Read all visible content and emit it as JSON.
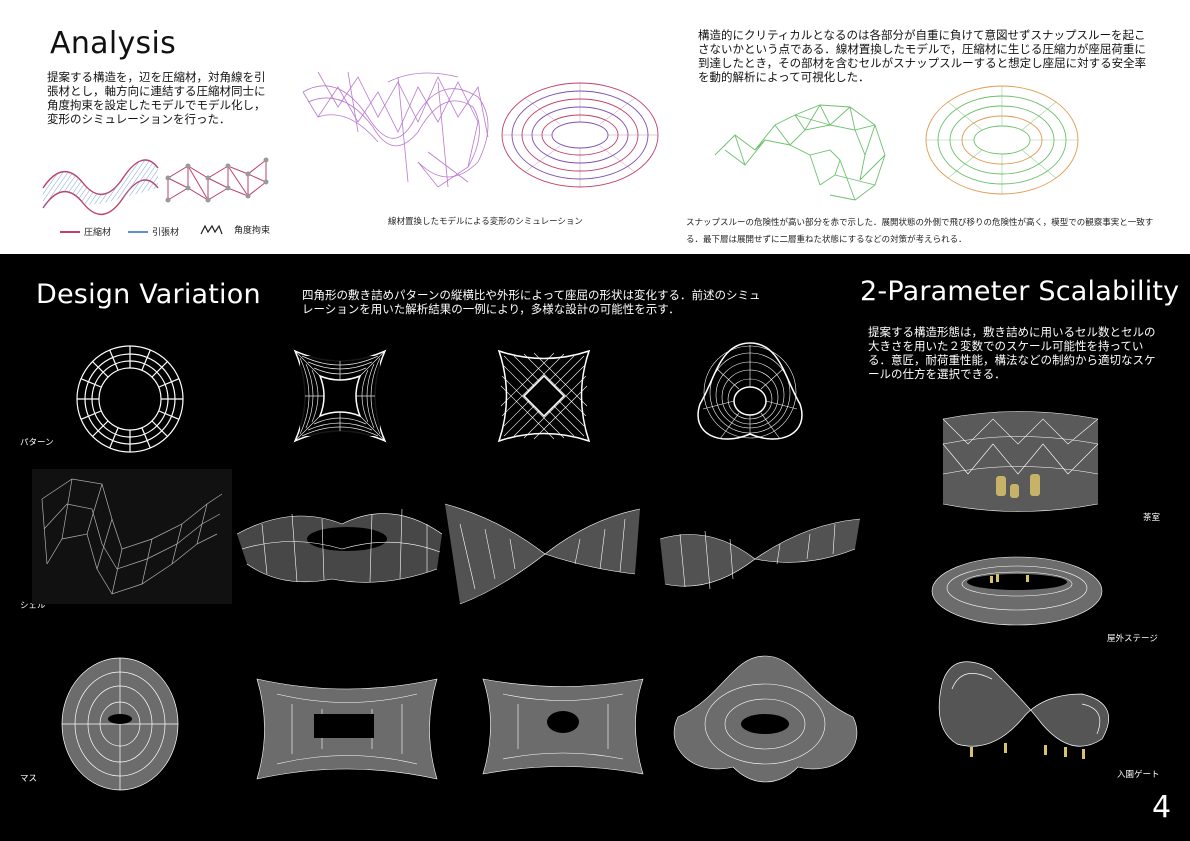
{
  "analysis": {
    "title": "Analysis",
    "description": "提案する構造を，辺を圧縮材，対角線を引張材とし，軸方向に連結する圧縮材同士に角度拘束を設定したモデルでモデル化し，変形のシミュレーションを行った．",
    "legend": {
      "compression": "圧縮材",
      "tension": "引張材",
      "angle": "角度拘束"
    },
    "sim_caption": "線材置換したモデルによる変形のシミュレーション",
    "critical_text": "構造的にクリティカルとなるのは各部分が自重に負けて意図せずスナップスルーを起こさないかという点である．線材置換したモデルで，圧縮材に生じる圧縮力が座屈荷重に到達したとき，その部材を含むセルがスナップスルーすると想定し座屈に対する安全率を動的解析によって可視化した．",
    "snap_caption": "スナップスルーの危険性が高い部分を赤で示した．展開状態の外側で飛び移りの危険性が高く，模型での観察事実と一致する．最下層は展開せずに二層重ねた状態にするなどの対策が考えられる．"
  },
  "design_variation": {
    "title": "Design Variation",
    "description": "四角形の敷き詰めパターンの縦横比や外形によって座屈の形状は変化する．前述のシミュレーションを用いた解析結果の一例により，多様な設計の可能性を示す．",
    "row_labels": [
      "パターン",
      "シェル",
      "マス"
    ]
  },
  "scalability": {
    "title": "2-Parameter Scalability",
    "description": "提案する構造形態は，敷き詰めに用いるセル数とセルの大きさを用いた２変数でのスケール可能性を持っている．意匠，耐荷重性能，構法などの制約から適切なスケールの仕方を選択できる．",
    "labels": [
      "茶室",
      "屋外ステージ",
      "入園ゲート"
    ]
  },
  "page_number": "4",
  "colors": {
    "compression": "#c0406a",
    "tension": "#5b8fd6",
    "snap_green": "#6dbf6d",
    "snap_orange": "#e09a50"
  }
}
